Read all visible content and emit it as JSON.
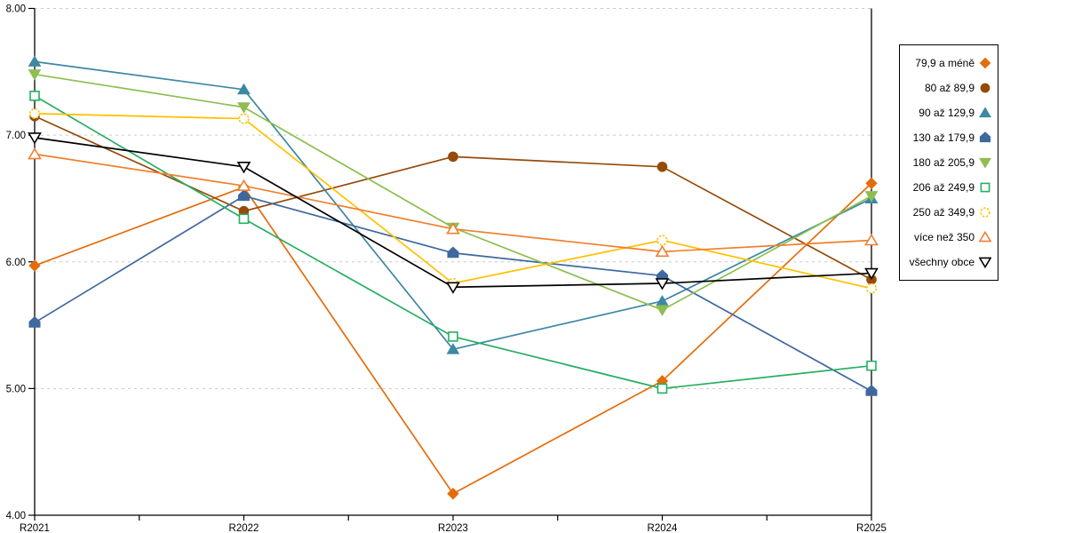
{
  "chart_data": {
    "type": "line",
    "title": "",
    "xlabel": "",
    "ylabel": "",
    "x": [
      "R2021",
      "R2022",
      "R2023",
      "R2024",
      "R2025"
    ],
    "ylim": [
      4.0,
      8.0
    ],
    "yticks": [
      {
        "value": 4.0,
        "label": "4.00"
      },
      {
        "value": 5.0,
        "label": "5.00"
      },
      {
        "value": 6.0,
        "label": "6.00"
      },
      {
        "value": 7.0,
        "label": "7.00"
      },
      {
        "value": 8.0,
        "label": "8.00"
      }
    ],
    "grid": "horizontal dashed gridlines at 5.00/6.00/7.00/8.00",
    "gridline_color": "#C9C9C9",
    "axis_color": "#000000",
    "legend_position": "right",
    "series": [
      {
        "name": "79,9 a méně",
        "marker": "diamond",
        "marker_fill": "filled",
        "color": "#E46C0A",
        "values": [
          5.97,
          6.59,
          4.17,
          5.06,
          6.62
        ]
      },
      {
        "name": "80 až 89,9",
        "marker": "circle",
        "marker_fill": "filled",
        "color": "#964B0A",
        "values": [
          7.15,
          6.4,
          6.83,
          6.75,
          5.86
        ]
      },
      {
        "name": "90 až 129,9",
        "marker": "triangle-up",
        "marker_fill": "filled",
        "color": "#3D88A3",
        "values": [
          7.58,
          7.36,
          5.31,
          5.69,
          6.5
        ]
      },
      {
        "name": "130 až 179,9",
        "marker": "pentagon",
        "marker_fill": "filled",
        "color": "#3F689E",
        "values": [
          5.52,
          6.52,
          6.07,
          5.89,
          4.98
        ]
      },
      {
        "name": "180 až 205,9",
        "marker": "triangle-down",
        "marker_fill": "filled",
        "color": "#8CBF4F",
        "values": [
          7.48,
          7.22,
          6.27,
          5.62,
          6.52
        ]
      },
      {
        "name": "206 až 249,9",
        "marker": "square",
        "marker_fill": "open",
        "color": "#27AE60",
        "values": [
          7.31,
          6.34,
          5.41,
          5.0,
          5.18
        ]
      },
      {
        "name": "250 až 349,9",
        "marker": "circle",
        "marker_fill": "open",
        "color": "#FFC000",
        "values": [
          7.17,
          7.13,
          5.83,
          6.17,
          5.79
        ]
      },
      {
        "name": "více než 350",
        "marker": "triangle-up",
        "marker_fill": "open",
        "color": "#F07F2E",
        "values": [
          6.85,
          6.6,
          6.26,
          6.08,
          6.17
        ]
      },
      {
        "name": "všechny obce",
        "marker": "triangle-down",
        "marker_fill": "open",
        "color": "#000000",
        "values": [
          6.98,
          6.75,
          5.8,
          5.83,
          5.91
        ]
      }
    ]
  }
}
